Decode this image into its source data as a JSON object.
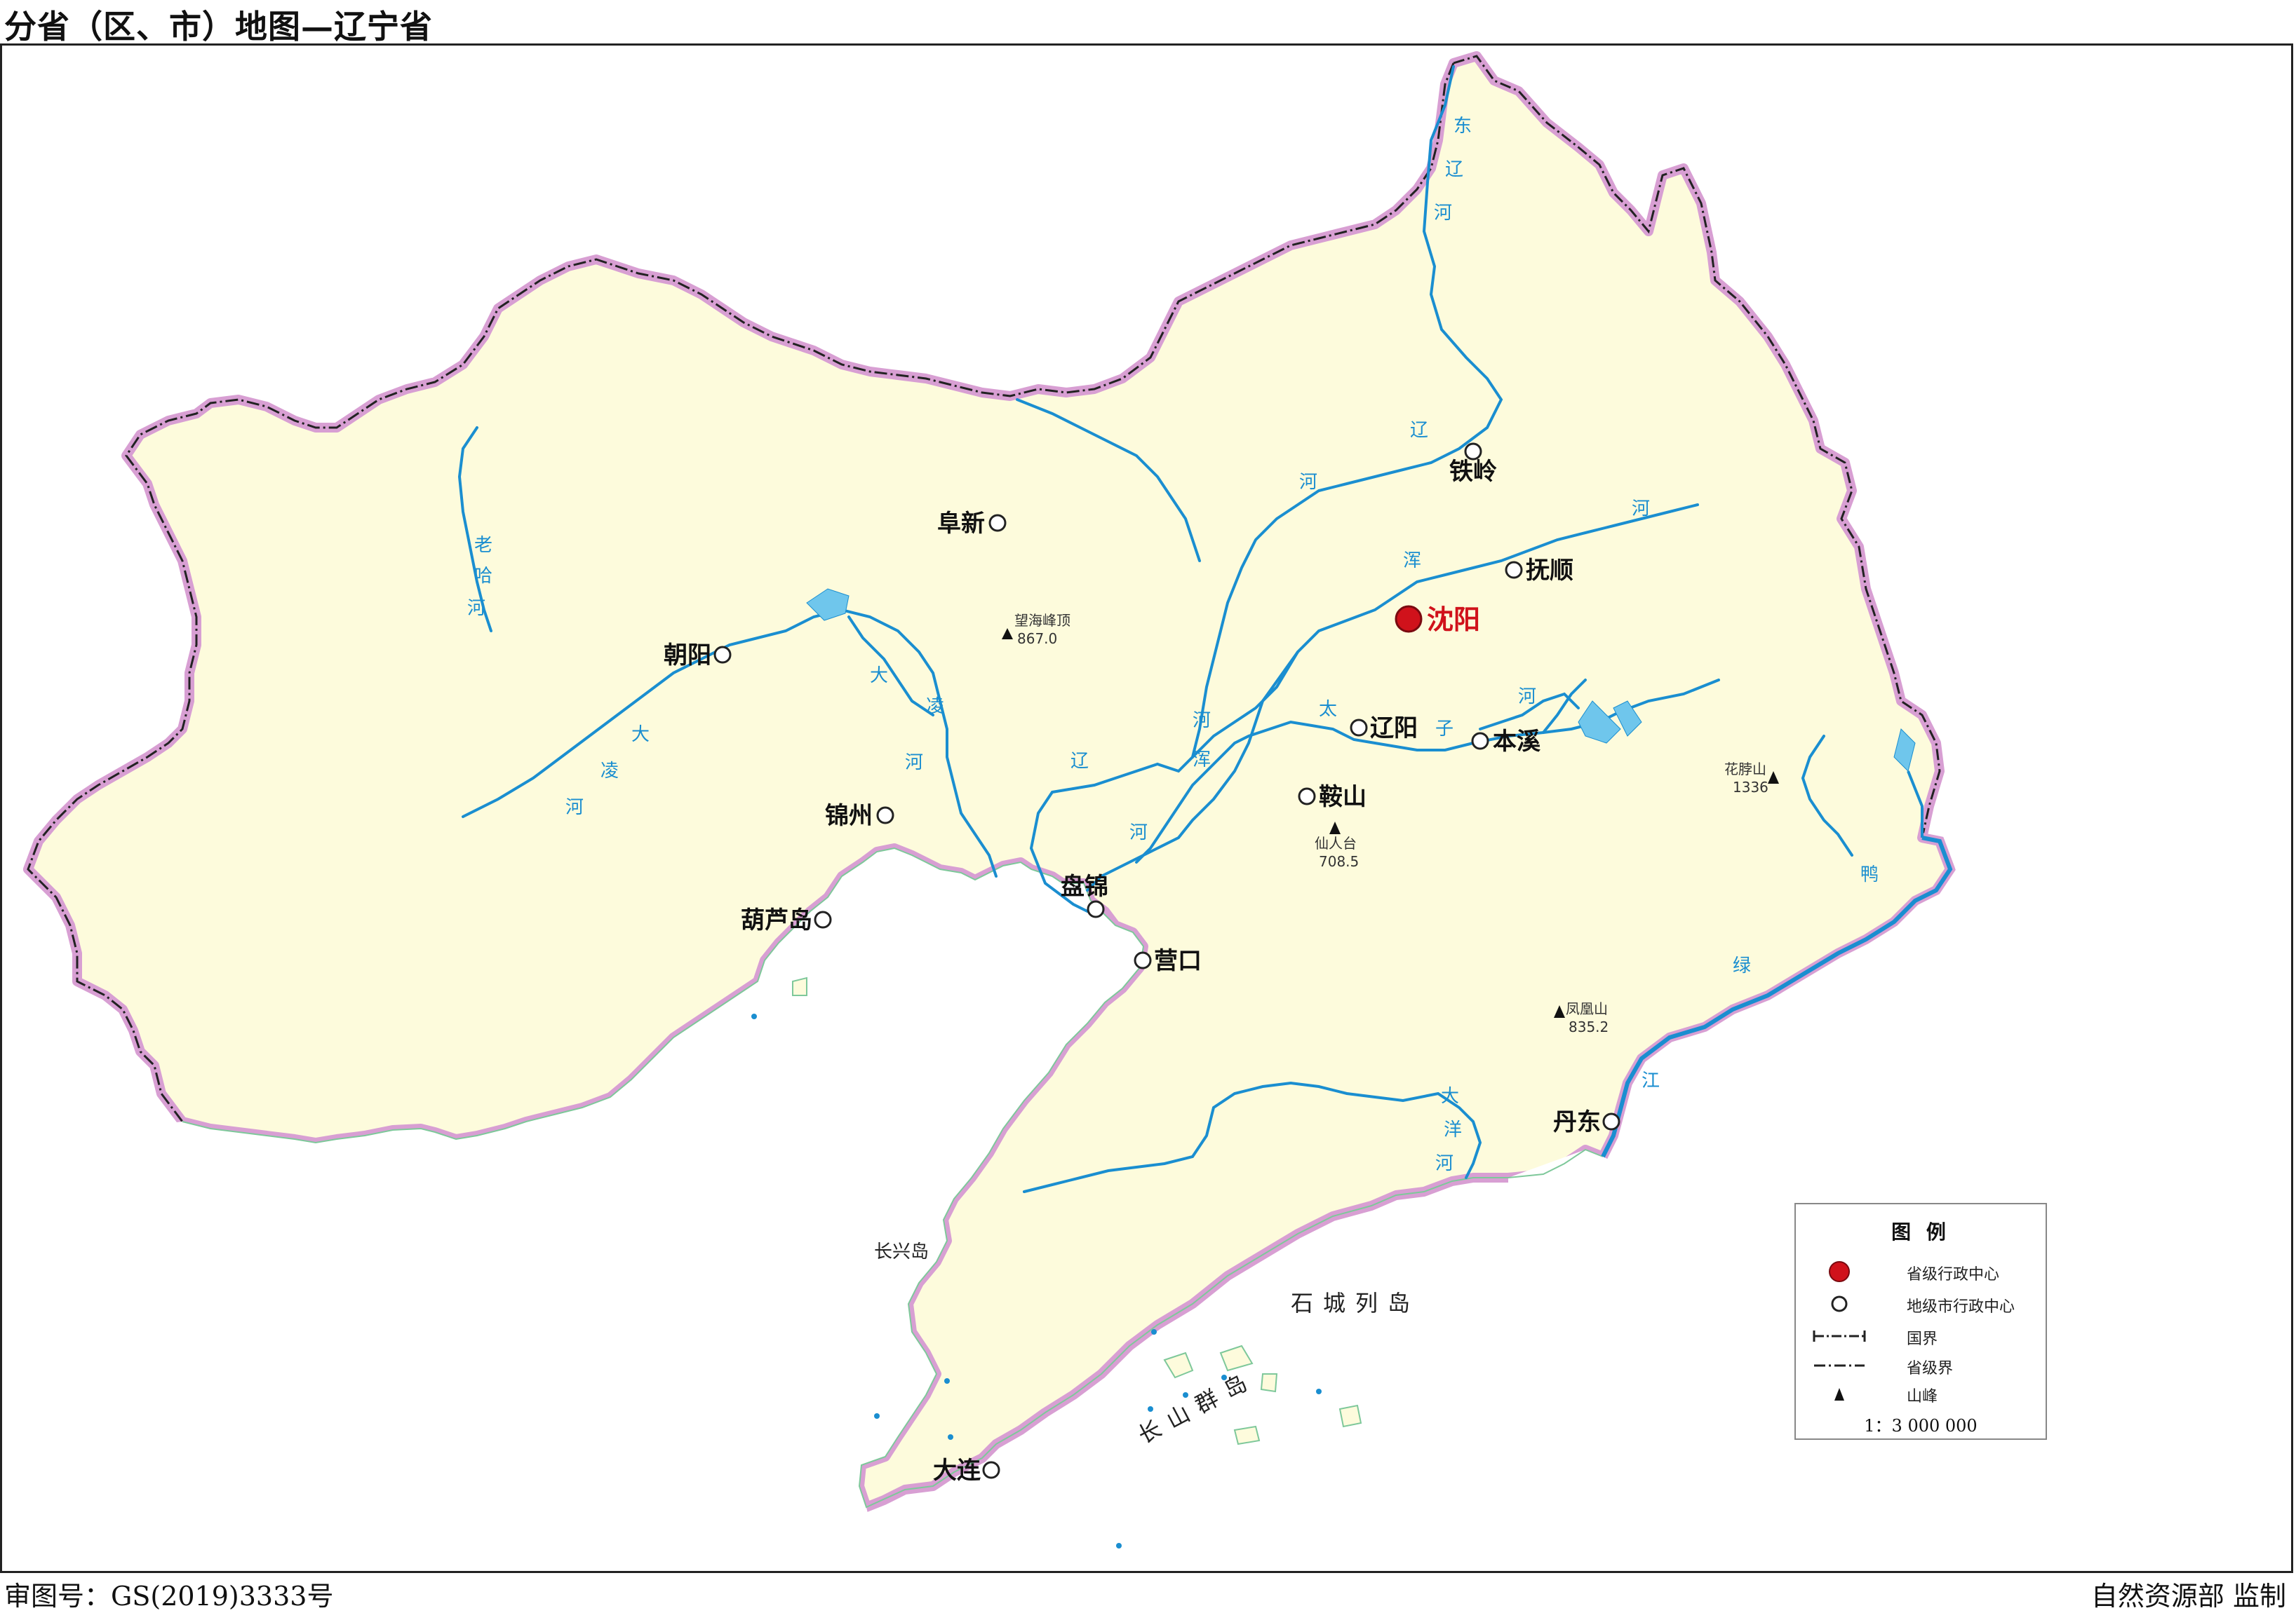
{
  "title": "分省（区、市）地图—辽宁省",
  "footer": {
    "approval_number": "审图号：GS(2019)3333号",
    "issuer": "自然资源部 监制"
  },
  "colors": {
    "land": "#fdfbdc",
    "water": "#6fc6ec",
    "river": "#1a8ed0",
    "border_halo": "#d89fd3",
    "capital_marker": "#d0121b"
  },
  "capital": {
    "name": "沈阳",
    "icon": "red-dot-icon"
  },
  "cities": [
    {
      "key": "tieling",
      "name": "铁岭"
    },
    {
      "key": "fushun",
      "name": "抚顺"
    },
    {
      "key": "fuxin",
      "name": "阜新"
    },
    {
      "key": "chaoyang",
      "name": "朝阳"
    },
    {
      "key": "liaoyang",
      "name": "辽阳"
    },
    {
      "key": "benxi",
      "name": "本溪"
    },
    {
      "key": "anshan",
      "name": "鞍山"
    },
    {
      "key": "jinzhou",
      "name": "锦州"
    },
    {
      "key": "huludao",
      "name": "葫芦岛"
    },
    {
      "key": "panjin",
      "name": "盘锦"
    },
    {
      "key": "yingkou",
      "name": "营口"
    },
    {
      "key": "dandong",
      "name": "丹东"
    },
    {
      "key": "dalian",
      "name": "大连"
    }
  ],
  "peaks": [
    {
      "key": "wanghaifeng",
      "name": "望海峰顶",
      "elevation": "867.0"
    },
    {
      "key": "xianrentai",
      "name": "仙人台",
      "elevation": "708.5"
    },
    {
      "key": "huabozishan",
      "name": "花脖山",
      "elevation": "1336"
    },
    {
      "key": "fenghuangshan",
      "name": "凤凰山",
      "elevation": "835.2"
    }
  ],
  "rivers": {
    "dongliao": [
      "东",
      "辽",
      "河"
    ],
    "laoha": [
      "老",
      "哈",
      "河"
    ],
    "dalinghe_upper": [
      "大",
      "凌",
      "河"
    ],
    "dalinghe_lower": [
      "大",
      "凌",
      "河"
    ],
    "liaohe_north": [
      "辽",
      "河"
    ],
    "liaohe_south": [
      "辽",
      "河"
    ],
    "hunhe_upper": [
      "浑",
      "河"
    ],
    "hunhe_lower": [
      "浑",
      "河"
    ],
    "taizihe_a": [
      "太",
      "子"
    ],
    "taizihe_b": [
      "河"
    ],
    "daliaohe": [
      "河"
    ],
    "yalujiang": [
      "鸭",
      "绿",
      "江"
    ],
    "dayanghe": [
      "大",
      "洋",
      "河"
    ]
  },
  "islands": {
    "changxing": "长兴岛",
    "shicheng": "石城列岛",
    "changshan": "长山群岛"
  },
  "legend": {
    "title": "图 例",
    "items": [
      {
        "label": "省级行政中心",
        "icon": "provincial-capital-icon"
      },
      {
        "label": "地级市行政中心",
        "icon": "prefecture-city-icon"
      },
      {
        "label": "国界",
        "icon": "national-border-icon"
      },
      {
        "label": "省级界",
        "icon": "provincial-border-icon"
      },
      {
        "label": "山峰",
        "icon": "mountain-peak-icon"
      }
    ],
    "scale": "1：3 000 000"
  }
}
